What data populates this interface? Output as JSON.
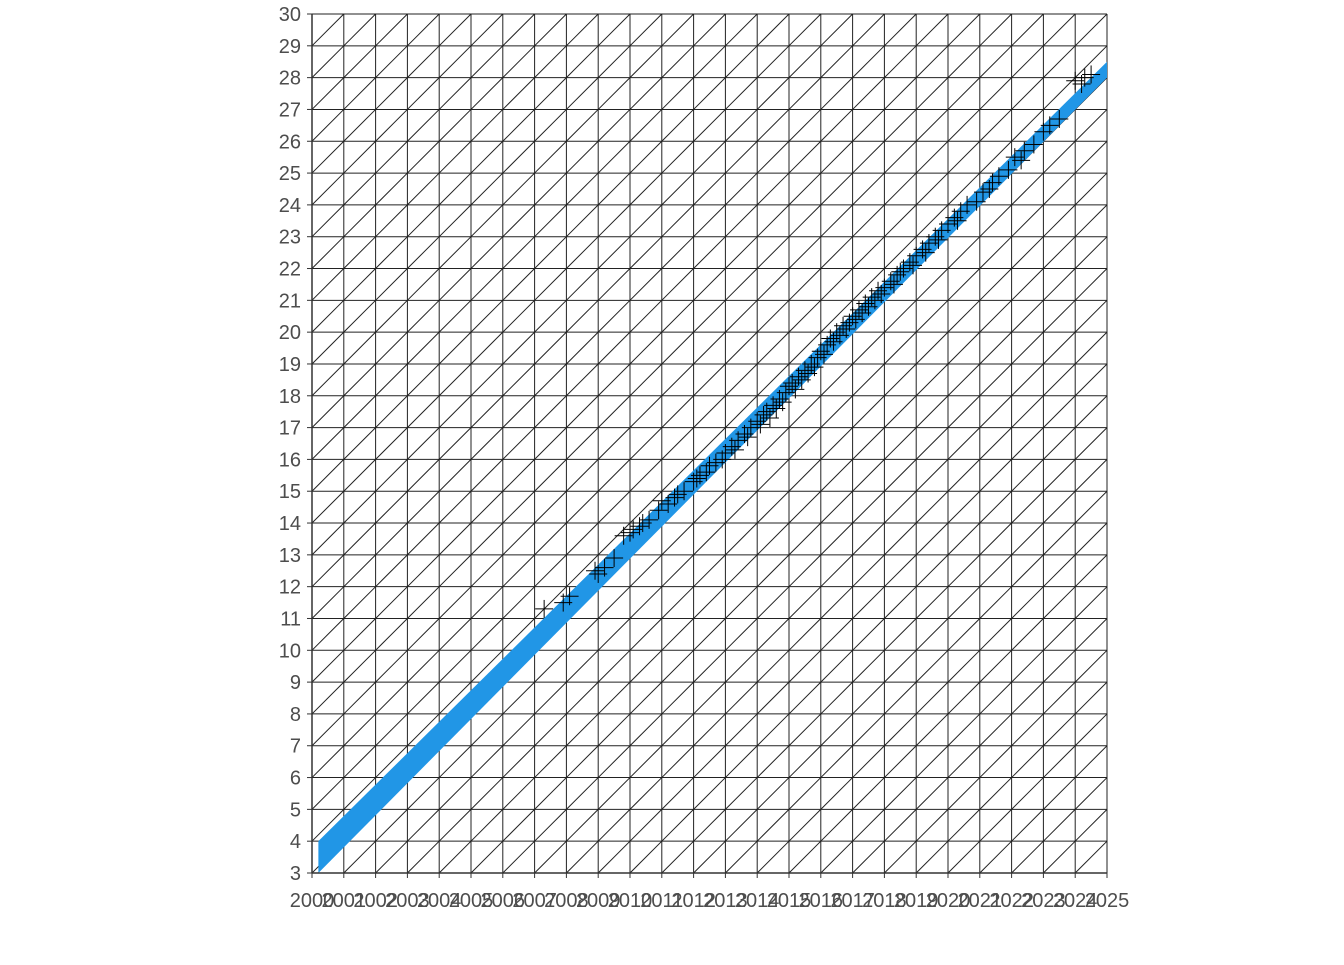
{
  "chart_data": {
    "type": "scatter",
    "title": "",
    "xlabel": "",
    "ylabel": "",
    "xlim": [
      2000,
      2025
    ],
    "ylim": [
      3,
      30
    ],
    "x_ticks": [
      "2000",
      "2001",
      "2002",
      "2003",
      "2004",
      "2005",
      "2006",
      "2007",
      "2008",
      "2009",
      "2010",
      "2011",
      "2012",
      "2013",
      "2014",
      "2015",
      "2016",
      "2017",
      "2018",
      "2019",
      "2020",
      "2021",
      "2022",
      "2023",
      "2024",
      "2025"
    ],
    "y_ticks": [
      "3",
      "4",
      "5",
      "6",
      "7",
      "8",
      "9",
      "10",
      "11",
      "12",
      "13",
      "14",
      "15",
      "16",
      "17",
      "18",
      "19",
      "20",
      "21",
      "22",
      "23",
      "24",
      "25",
      "26",
      "27",
      "28",
      "29",
      "30"
    ],
    "grid": "square grid with diagonal lines through each cell",
    "band": {
      "color": "#2196e6",
      "lower": [
        [
          2000.2,
          3.0
        ],
        [
          2025,
          28.0
        ]
      ],
      "upper": [
        [
          2000.2,
          4.0
        ],
        [
          2025,
          28.5
        ]
      ]
    },
    "marker": "plus",
    "marker_color": "#000000",
    "series": [
      {
        "points": [
          [
            2007.3,
            11.3
          ],
          [
            2007.9,
            11.5
          ],
          [
            2008.1,
            11.7
          ],
          [
            2009.0,
            12.4
          ],
          [
            2009.2,
            12.6
          ],
          [
            2009.5,
            12.9
          ],
          [
            2008.9,
            12.5
          ],
          [
            2009.8,
            13.6
          ],
          [
            2010.1,
            13.8
          ],
          [
            2010.3,
            13.9
          ],
          [
            2010.6,
            14.1
          ],
          [
            2010.0,
            13.7
          ],
          [
            2010.4,
            14.0
          ],
          [
            2010.9,
            14.4
          ],
          [
            2011.2,
            14.6
          ],
          [
            2011.4,
            14.8
          ],
          [
            2011.7,
            15.0
          ],
          [
            2011.0,
            14.7
          ],
          [
            2011.5,
            14.9
          ],
          [
            2012.0,
            15.3
          ],
          [
            2012.2,
            15.5
          ],
          [
            2012.4,
            15.6
          ],
          [
            2012.7,
            15.9
          ],
          [
            2012.9,
            16.0
          ],
          [
            2012.1,
            15.4
          ],
          [
            2012.5,
            15.8
          ],
          [
            2013.0,
            16.2
          ],
          [
            2013.2,
            16.4
          ],
          [
            2013.4,
            16.6
          ],
          [
            2013.6,
            16.8
          ],
          [
            2013.8,
            17.0
          ],
          [
            2013.3,
            16.3
          ],
          [
            2013.7,
            16.7
          ],
          [
            2014.0,
            17.2
          ],
          [
            2014.2,
            17.4
          ],
          [
            2014.3,
            17.5
          ],
          [
            2014.5,
            17.7
          ],
          [
            2014.7,
            17.9
          ],
          [
            2014.9,
            18.1
          ],
          [
            2014.1,
            17.1
          ],
          [
            2014.4,
            17.3
          ],
          [
            2014.6,
            17.6
          ],
          [
            2014.8,
            17.8
          ],
          [
            2015.0,
            18.3
          ],
          [
            2015.1,
            18.4
          ],
          [
            2015.3,
            18.6
          ],
          [
            2015.5,
            18.8
          ],
          [
            2015.7,
            19.0
          ],
          [
            2015.9,
            19.2
          ],
          [
            2015.2,
            18.2
          ],
          [
            2015.4,
            18.5
          ],
          [
            2015.6,
            18.7
          ],
          [
            2015.8,
            18.9
          ],
          [
            2016.0,
            19.4
          ],
          [
            2016.2,
            19.6
          ],
          [
            2016.3,
            19.8
          ],
          [
            2016.5,
            20.0
          ],
          [
            2016.7,
            20.2
          ],
          [
            2016.9,
            20.3
          ],
          [
            2016.1,
            19.3
          ],
          [
            2016.4,
            19.7
          ],
          [
            2016.6,
            19.9
          ],
          [
            2016.8,
            20.1
          ],
          [
            2017.0,
            20.5
          ],
          [
            2017.2,
            20.7
          ],
          [
            2017.4,
            20.9
          ],
          [
            2017.6,
            21.1
          ],
          [
            2017.8,
            21.3
          ],
          [
            2017.1,
            20.4
          ],
          [
            2017.3,
            20.6
          ],
          [
            2017.5,
            20.8
          ],
          [
            2017.7,
            21.0
          ],
          [
            2017.9,
            21.2
          ],
          [
            2018.0,
            21.4
          ],
          [
            2018.2,
            21.6
          ],
          [
            2018.4,
            21.8
          ],
          [
            2018.6,
            22.0
          ],
          [
            2018.8,
            22.2
          ],
          [
            2018.3,
            21.5
          ],
          [
            2018.5,
            21.9
          ],
          [
            2018.9,
            22.1
          ],
          [
            2019.0,
            22.4
          ],
          [
            2019.2,
            22.6
          ],
          [
            2019.4,
            22.8
          ],
          [
            2019.6,
            23.0
          ],
          [
            2019.8,
            23.2
          ],
          [
            2019.3,
            22.5
          ],
          [
            2019.7,
            22.9
          ],
          [
            2020.0,
            23.4
          ],
          [
            2020.2,
            23.6
          ],
          [
            2020.4,
            23.8
          ],
          [
            2020.6,
            24.0
          ],
          [
            2020.9,
            24.1
          ],
          [
            2020.3,
            23.5
          ],
          [
            2021.1,
            24.4
          ],
          [
            2021.4,
            24.7
          ],
          [
            2021.6,
            24.9
          ],
          [
            2021.9,
            25.1
          ],
          [
            2021.3,
            24.5
          ],
          [
            2022.1,
            25.5
          ],
          [
            2022.4,
            25.7
          ],
          [
            2022.7,
            25.9
          ],
          [
            2022.3,
            25.4
          ],
          [
            2023.2,
            26.5
          ],
          [
            2023.5,
            26.7
          ],
          [
            2023.0,
            26.3
          ],
          [
            2024.0,
            27.9
          ],
          [
            2024.3,
            28.0
          ],
          [
            2024.5,
            28.1
          ],
          [
            2024.2,
            27.8
          ]
        ]
      }
    ]
  }
}
